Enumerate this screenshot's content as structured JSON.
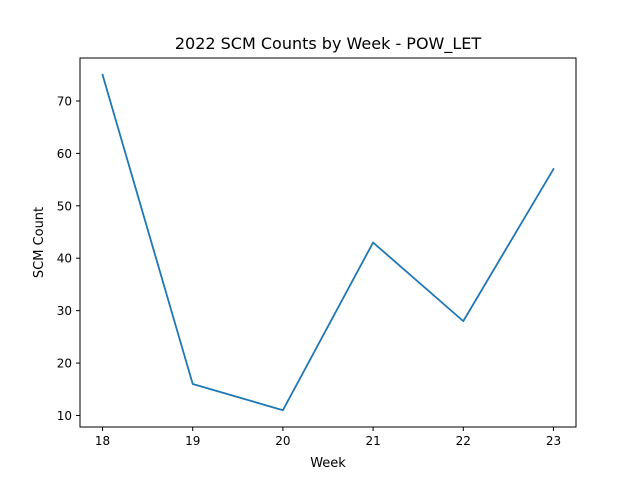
{
  "chart_data": {
    "type": "line",
    "title": "2022 SCM Counts by Week - POW_LET",
    "xlabel": "Week",
    "ylabel": "SCM Count",
    "x": [
      18,
      19,
      20,
      21,
      22,
      23
    ],
    "series": [
      {
        "values": [
          75,
          16,
          11,
          43,
          28,
          57
        ]
      }
    ],
    "xlim": [
      17.75,
      23.25
    ],
    "ylim": [
      7.8,
      78.2
    ],
    "xticks": [
      "18",
      "19",
      "20",
      "21",
      "22",
      "23"
    ],
    "yticks": [
      "10",
      "20",
      "30",
      "40",
      "50",
      "60",
      "70"
    ],
    "grid": false,
    "line_color": "#1f77b4"
  }
}
